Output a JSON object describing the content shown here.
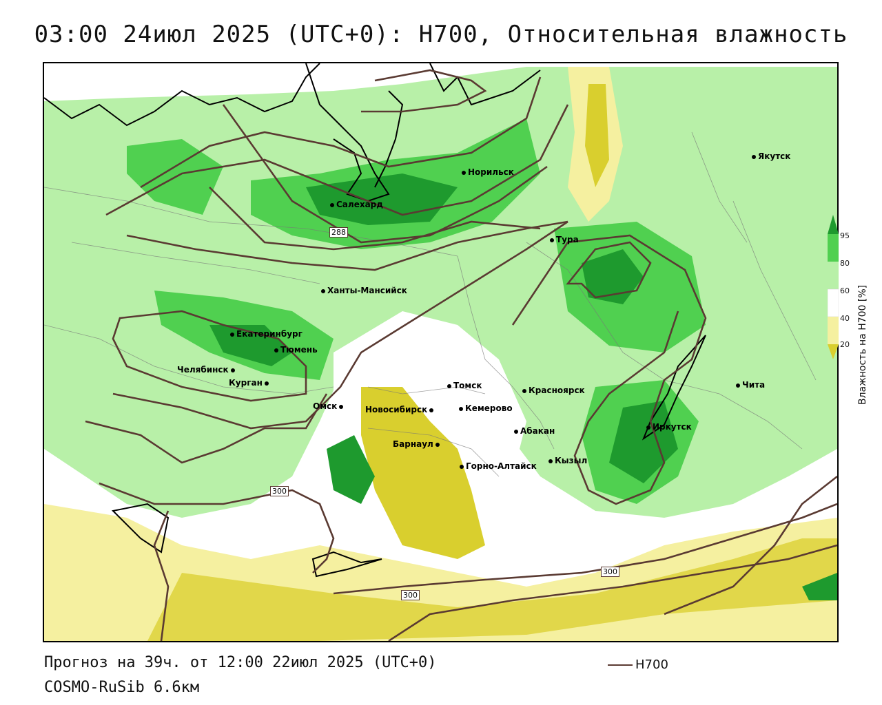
{
  "title": "03:00 24июл 2025 (UTC+0): H700, Относительная влажность",
  "footer": {
    "forecast": "Прогноз на 39ч. от 12:00 22июл 2025 (UTC+0)",
    "model": "COSMO-RuSib 6.6км",
    "line_legend": "H700"
  },
  "legend": {
    "title": "Влажность на H700 [%]",
    "ticks": [
      "95",
      "80",
      "60",
      "40",
      "20"
    ],
    "colors": {
      "very_dry": "#d9cf2e",
      "dry": "#f5f0a0",
      "neutral": "#ffffff",
      "moist": "#b8f0a8",
      "wet": "#50d050",
      "very_wet": "#1e9a2e"
    },
    "isoline_color": "#5a3a32"
  },
  "isoline_labels": [
    "288",
    "300",
    "300",
    "300"
  ],
  "cities": [
    {
      "name": "Якутск",
      "key": "yakutsk"
    },
    {
      "name": "Норильск",
      "key": "norilsk"
    },
    {
      "name": "Салехард",
      "key": "salekhard"
    },
    {
      "name": "Тура",
      "key": "tura"
    },
    {
      "name": "Ханты-Мансийск",
      "key": "khanty"
    },
    {
      "name": "Екатеринбург",
      "key": "ekb"
    },
    {
      "name": "Тюмень",
      "key": "tyumen"
    },
    {
      "name": "Челябинск",
      "key": "chelyabinsk"
    },
    {
      "name": "Курган",
      "key": "kurgan"
    },
    {
      "name": "Омск",
      "key": "omsk"
    },
    {
      "name": "Томск",
      "key": "tomsk"
    },
    {
      "name": "Новосибирск",
      "key": "nsk"
    },
    {
      "name": "Кемерово",
      "key": "kemerovo"
    },
    {
      "name": "Красноярск",
      "key": "krasnoyarsk"
    },
    {
      "name": "Барнаул",
      "key": "barnaul"
    },
    {
      "name": "Абакан",
      "key": "abakan"
    },
    {
      "name": "Иркутск",
      "key": "irkutsk"
    },
    {
      "name": "Чита",
      "key": "chita"
    },
    {
      "name": "Кызыл",
      "key": "kyzyl"
    },
    {
      "name": "Горно-Алтайск",
      "key": "gorno"
    }
  ]
}
